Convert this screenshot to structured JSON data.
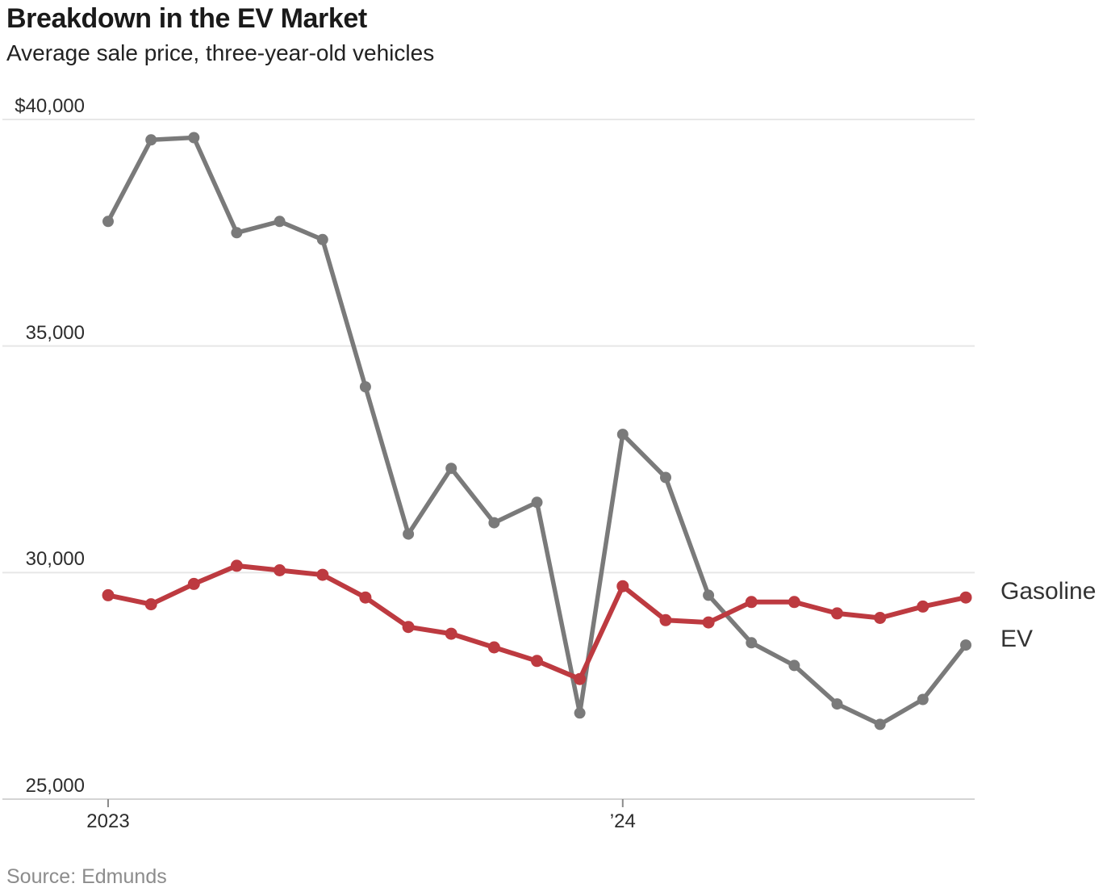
{
  "header": {
    "title": "Breakdown in the EV Market",
    "subtitle": "Average sale price, three-year-old vehicles"
  },
  "source_note": "Source: Edmunds",
  "colors": {
    "gasoline": "#bd3a40",
    "ev": "#7a7a7a",
    "gridline": "#e7e7e7",
    "baseline": "#d4d4d4",
    "tick": "#8a8a8a"
  },
  "chart_data": {
    "type": "line",
    "title": "Breakdown in the EV Market",
    "subtitle": "Average sale price, three-year-old vehicles",
    "unit": "USD",
    "ylim": [
      25000,
      40000
    ],
    "grid": "horizontal",
    "legend_position": "right",
    "x": [
      "Jan 2023",
      "Feb 2023",
      "Mar 2023",
      "Apr 2023",
      "May 2023",
      "Jun 2023",
      "Jul 2023",
      "Aug 2023",
      "Sep 2023",
      "Oct 2023",
      "Nov 2023",
      "Dec 2023",
      "Jan 2024",
      "Feb 2024",
      "Mar 2024",
      "Apr 2024",
      "May 2024",
      "Jun 2024",
      "Jul 2024",
      "Aug 2024",
      "Sep 2024"
    ],
    "x_ticks": [
      {
        "label": "2023",
        "index": 0
      },
      {
        "label": "’24",
        "index": 12
      }
    ],
    "y_ticks": [
      {
        "label": "$40,000",
        "value": 40000
      },
      {
        "label": "35,000",
        "value": 35000
      },
      {
        "label": "30,000",
        "value": 30000
      },
      {
        "label": "25,000",
        "value": 25000
      }
    ],
    "series": [
      {
        "name": "Gasoline",
        "color": "#bd3a40",
        "values": [
          29500,
          29300,
          29750,
          30150,
          30050,
          29950,
          29450,
          28800,
          28650,
          28350,
          28050,
          27650,
          29700,
          28950,
          28900,
          29350,
          29350,
          29100,
          29000,
          29250,
          29450
        ]
      },
      {
        "name": "EV",
        "color": "#7a7a7a",
        "values": [
          37750,
          39550,
          39600,
          37500,
          37750,
          37350,
          34100,
          30850,
          32300,
          31100,
          31550,
          26900,
          33050,
          32100,
          29500,
          28450,
          27950,
          27100,
          26650,
          27200,
          28400
        ]
      }
    ]
  }
}
